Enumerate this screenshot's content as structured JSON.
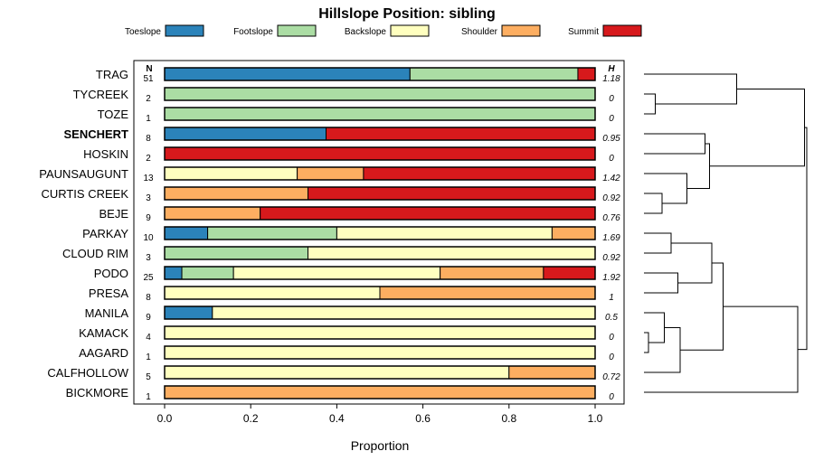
{
  "chart_data": {
    "type": "bar",
    "orientation": "horizontal",
    "stacked": true,
    "title": "Hillslope Position: sibling",
    "xlabel": "Proportion",
    "ylabel": "",
    "xlim": [
      0,
      1
    ],
    "x_ticks": [
      "0.0",
      "0.2",
      "0.4",
      "0.6",
      "0.8",
      "1.0"
    ],
    "n_header": "N",
    "h_header": "H",
    "legend_position": "top",
    "legend": [
      {
        "name": "Toeslope",
        "color": "#2b83ba"
      },
      {
        "name": "Footslope",
        "color": "#abdda4"
      },
      {
        "name": "Backslope",
        "color": "#ffffbf"
      },
      {
        "name": "Shoulder",
        "color": "#fdae61"
      },
      {
        "name": "Summit",
        "color": "#d7191c"
      }
    ],
    "categories": [
      {
        "name": "TRAG",
        "bold": false,
        "n": "51",
        "h": "1.18",
        "values": [
          0.57,
          0.39,
          0.0,
          0.0,
          0.04
        ]
      },
      {
        "name": "TYCREEK",
        "bold": false,
        "n": "2",
        "h": "0",
        "values": [
          0.0,
          1.0,
          0.0,
          0.0,
          0.0
        ]
      },
      {
        "name": "TOZE",
        "bold": false,
        "n": "1",
        "h": "0",
        "values": [
          0.0,
          1.0,
          0.0,
          0.0,
          0.0
        ]
      },
      {
        "name": "SENCHERT",
        "bold": true,
        "n": "8",
        "h": "0.95",
        "values": [
          0.375,
          0.0,
          0.0,
          0.0,
          0.625
        ]
      },
      {
        "name": "HOSKIN",
        "bold": false,
        "n": "2",
        "h": "0",
        "values": [
          0.0,
          0.0,
          0.0,
          0.0,
          1.0
        ]
      },
      {
        "name": "PAUNSAUGUNT",
        "bold": false,
        "n": "13",
        "h": "1.42",
        "values": [
          0.0,
          0.0,
          0.308,
          0.154,
          0.538
        ]
      },
      {
        "name": "CURTIS CREEK",
        "bold": false,
        "n": "3",
        "h": "0.92",
        "values": [
          0.0,
          0.0,
          0.0,
          0.333,
          0.667
        ]
      },
      {
        "name": "BEJE",
        "bold": false,
        "n": "9",
        "h": "0.76",
        "values": [
          0.0,
          0.0,
          0.0,
          0.222,
          0.778
        ]
      },
      {
        "name": "PARKAY",
        "bold": false,
        "n": "10",
        "h": "1.69",
        "values": [
          0.1,
          0.3,
          0.5,
          0.1,
          0.0
        ]
      },
      {
        "name": "CLOUD RIM",
        "bold": false,
        "n": "3",
        "h": "0.92",
        "values": [
          0.0,
          0.333,
          0.667,
          0.0,
          0.0
        ]
      },
      {
        "name": "PODO",
        "bold": false,
        "n": "25",
        "h": "1.92",
        "values": [
          0.04,
          0.12,
          0.48,
          0.24,
          0.12
        ]
      },
      {
        "name": "PRESA",
        "bold": false,
        "n": "8",
        "h": "1",
        "values": [
          0.0,
          0.0,
          0.5,
          0.5,
          0.0
        ]
      },
      {
        "name": "MANILA",
        "bold": false,
        "n": "9",
        "h": "0.5",
        "values": [
          0.111,
          0.0,
          0.889,
          0.0,
          0.0
        ]
      },
      {
        "name": "KAMACK",
        "bold": false,
        "n": "4",
        "h": "0",
        "values": [
          0.0,
          0.0,
          1.0,
          0.0,
          0.0
        ]
      },
      {
        "name": "AAGARD",
        "bold": false,
        "n": "1",
        "h": "0",
        "values": [
          0.0,
          0.0,
          1.0,
          0.0,
          0.0
        ]
      },
      {
        "name": "CALFHOLLOW",
        "bold": false,
        "n": "5",
        "h": "0.72",
        "values": [
          0.0,
          0.0,
          0.8,
          0.2,
          0.0
        ]
      },
      {
        "name": "BICKMORE",
        "bold": false,
        "n": "1",
        "h": "0",
        "values": [
          0.0,
          0.0,
          0.0,
          1.0,
          0.0
        ]
      }
    ],
    "dendrogram": {
      "position": "right",
      "leaf_order": [
        "TRAG",
        "TYCREEK",
        "TOZE",
        "SENCHERT",
        "HOSKIN",
        "PAUNSAUGUNT",
        "CURTIS CREEK",
        "BEJE",
        "PARKAY",
        "CLOUD RIM",
        "PODO",
        "PRESA",
        "MANILA",
        "KAMACK",
        "AAGARD",
        "CALFHOLLOW",
        "BICKMORE"
      ],
      "merges": [
        {
          "a": 13,
          "b": 14,
          "height": 0.02
        },
        {
          "a": 1,
          "b": 2,
          "height": 0.05
        },
        {
          "a": 6,
          "b": 7,
          "height": 0.08
        },
        {
          "a": 12,
          "b": "m0",
          "height": 0.09
        },
        {
          "a": "m3",
          "b": 15,
          "height": 0.16
        },
        {
          "a": 10,
          "b": 11,
          "height": 0.15
        },
        {
          "a": 8,
          "b": 9,
          "height": 0.12
        },
        {
          "a": 5,
          "b": "m2",
          "height": 0.19
        },
        {
          "a": 3,
          "b": 4,
          "height": 0.27
        },
        {
          "a": "m8",
          "b": "m7",
          "height": 0.29
        },
        {
          "a": "m6",
          "b": "m5",
          "height": 0.3
        },
        {
          "a": "m10",
          "b": "m4",
          "height": 0.35
        },
        {
          "a": 0,
          "b": "m1",
          "height": 0.41
        },
        {
          "a": "m11",
          "b": 16,
          "height": 0.68
        },
        {
          "a": "m12",
          "b": "m9",
          "height": 0.71
        },
        {
          "a": "m14",
          "b": "m13",
          "height": 0.72
        }
      ]
    }
  }
}
